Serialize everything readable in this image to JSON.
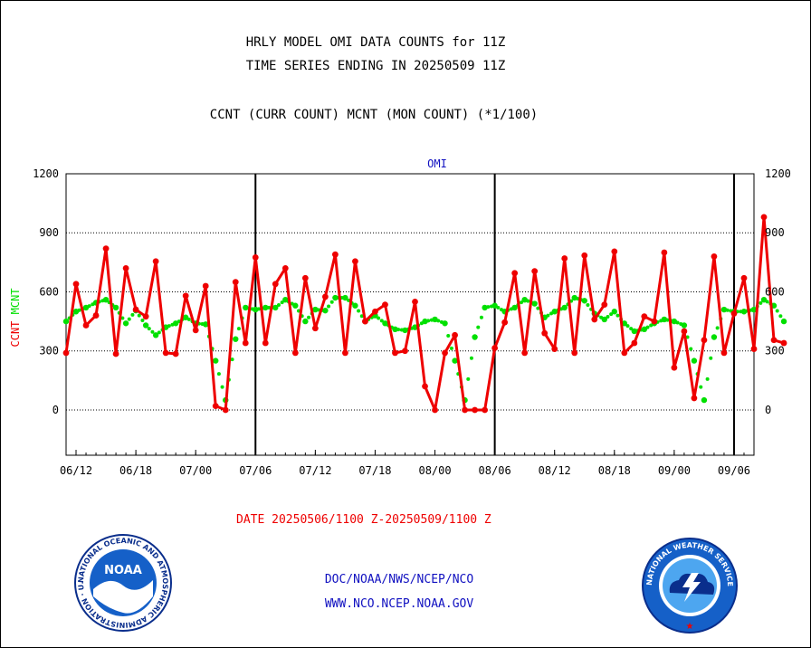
{
  "header": {
    "line1": "HRLY MODEL OMI DATA COUNTS for 11Z",
    "line2": "TIME SERIES ENDING IN 20250509 11Z",
    "line3": "CCNT (CURR COUNT) MCNT (MON COUNT) (*1/100)"
  },
  "footer": {
    "date_range": "DATE 20250506/1100 Z-20250509/1100 Z",
    "org_line": "DOC/NOAA/NWS/NCEP/NCO",
    "url_line": "WWW.NCO.NCEP.NOAA.GOV",
    "noaa_logo_text": "NOAA",
    "noaa_ring_text": "NATIONAL OCEANIC AND ATMOSPHERIC ADMINISTRATION · U.S. DEPARTMENT OF COMMERCE",
    "nws_ring_text": "NATIONAL WEATHER SERVICE"
  },
  "colors": {
    "ccnt": "#ee0000",
    "mcnt": "#00e000",
    "label_blue": "#1010c0",
    "logo_blue": "#1560c8",
    "logo_dark_blue": "#0a2e8c"
  },
  "chart_data": {
    "type": "line",
    "title": "OMI",
    "ylabel_parts": [
      {
        "text": "CCNT",
        "color": "#ee0000"
      },
      {
        "text": "MCNT",
        "color": "#00e000"
      }
    ],
    "ylim": [
      -230,
      1200
    ],
    "yticks": [
      1200,
      900,
      600,
      300,
      0
    ],
    "xlim": [
      0,
      69
    ],
    "xtick_labels": [
      {
        "x": 1,
        "label": "06/12"
      },
      {
        "x": 7,
        "label": "06/18"
      },
      {
        "x": 13,
        "label": "07/00"
      },
      {
        "x": 19,
        "label": "07/06"
      },
      {
        "x": 25,
        "label": "07/12"
      },
      {
        "x": 31,
        "label": "07/18"
      },
      {
        "x": 37,
        "label": "08/00"
      },
      {
        "x": 43,
        "label": "08/06"
      },
      {
        "x": 49,
        "label": "08/12"
      },
      {
        "x": 55,
        "label": "08/18"
      },
      {
        "x": 61,
        "label": "09/00"
      },
      {
        "x": 67,
        "label": "09/06"
      }
    ],
    "day_boundaries": [
      19,
      43,
      67
    ],
    "series": [
      {
        "name": "CCNT",
        "style": "solid",
        "values": [
          290,
          640,
          430,
          480,
          820,
          285,
          720,
          510,
          475,
          755,
          290,
          285,
          580,
          405,
          630,
          20,
          0,
          650,
          340,
          775,
          340,
          640,
          720,
          290,
          670,
          415,
          575,
          790,
          290,
          755,
          450,
          500,
          535,
          290,
          300,
          550,
          120,
          0,
          290,
          380,
          0,
          0,
          0,
          315,
          445,
          695,
          290,
          705,
          390,
          310,
          770,
          290,
          785,
          460,
          535,
          805,
          290,
          340,
          475,
          450,
          800,
          215,
          400,
          60,
          355,
          780,
          290,
          490,
          670,
          310,
          980,
          355,
          340
        ]
      },
      {
        "name": "MCNT",
        "style": "dotted",
        "values": [
          450,
          500,
          520,
          545,
          560,
          520,
          440,
          505,
          430,
          380,
          420,
          440,
          470,
          440,
          435,
          250,
          50,
          360,
          520,
          510,
          520,
          520,
          560,
          530,
          450,
          510,
          505,
          570,
          570,
          530,
          450,
          480,
          440,
          410,
          405,
          420,
          450,
          460,
          440,
          250,
          50,
          370,
          520,
          530,
          500,
          520,
          560,
          540,
          470,
          500,
          520,
          570,
          555,
          490,
          460,
          500,
          440,
          400,
          410,
          440,
          460,
          450,
          430,
          250,
          50,
          370,
          510,
          500,
          500,
          510,
          560,
          530,
          450
        ]
      }
    ]
  }
}
